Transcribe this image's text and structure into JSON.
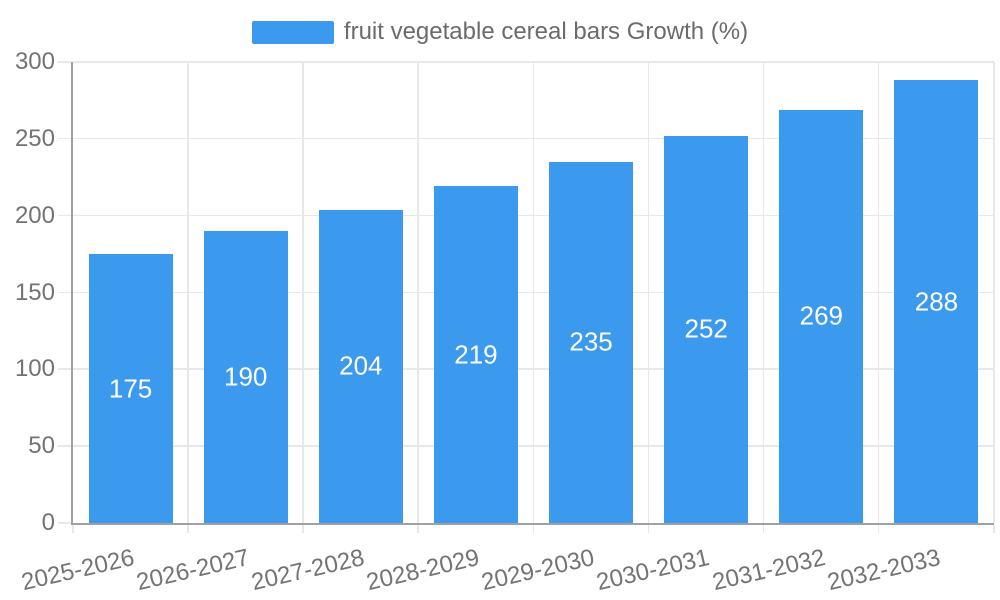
{
  "legend": {
    "label": "fruit vegetable cereal bars Growth (%)"
  },
  "chart_data": {
    "type": "bar",
    "title": "",
    "categories": [
      "2025-2026",
      "2026-2027",
      "2027-2028",
      "2028-2029",
      "2029-2030",
      "2030-2031",
      "2031-2032",
      "2032-2033"
    ],
    "values": [
      175,
      190,
      204,
      219,
      235,
      252,
      269,
      288
    ],
    "legend": [
      "fruit vegetable cereal bars Growth (%)"
    ],
    "legend_position": "top",
    "xlabel": "",
    "ylabel": "",
    "ylim": [
      0,
      300
    ],
    "yticks": [
      0,
      50,
      100,
      150,
      200,
      250,
      300
    ],
    "grid": true,
    "value_labels": "inside-center",
    "x_tick_rotation_deg": -13
  },
  "colors": {
    "bar": "#3c9aee",
    "bar_value_text": "#ffffff",
    "grid_line": "#e8e8e8",
    "axis_line": "#a0a0a0",
    "tick_text": "#737373",
    "legend_text": "#6b6b6b",
    "background": "#ffffff"
  }
}
